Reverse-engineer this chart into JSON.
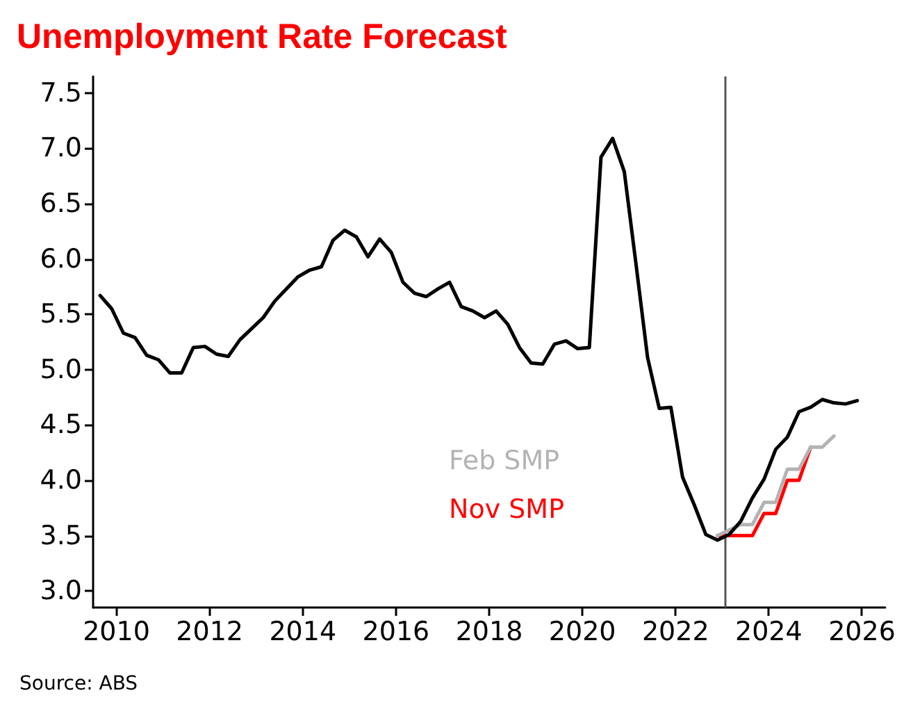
{
  "chart_data": {
    "type": "line",
    "title": "Unemployment Rate Forecast",
    "annotations": [
      "Source: ABS"
    ],
    "xlim": [
      2009.5,
      2026.5
    ],
    "xticks": [
      2010,
      2012,
      2014,
      2016,
      2018,
      2020,
      2022,
      2024,
      2026
    ],
    "ylim": [
      2.85,
      7.65
    ],
    "yticks": [
      {
        "value": 3,
        "label": "3.0"
      },
      {
        "value": 3.5,
        "label": "3.5"
      },
      {
        "value": 4,
        "label": "4.0"
      },
      {
        "value": 4.5,
        "label": "4.5"
      },
      {
        "value": 5,
        "label": "5.0"
      },
      {
        "value": 5.5,
        "label": "5.5"
      },
      {
        "value": 6,
        "label": "6.0"
      },
      {
        "value": 6.5,
        "label": "6.5"
      },
      {
        "value": 7,
        "label": "7.0"
      },
      {
        "value": 7.5,
        "label": "7.5"
      }
    ],
    "grid": false,
    "legend": false,
    "marker": "none",
    "line_style": "solid",
    "ref_lines": [
      {
        "axis": "x",
        "value": 2023.05,
        "label": null,
        "color": "#555555",
        "line_style": "solid"
      }
    ],
    "series": [
      {
        "color": "#000000",
        "x": [
          2009.65,
          2009.9,
          2010.15,
          2010.4,
          2010.65,
          2010.9,
          2011.15,
          2011.4,
          2011.65,
          2011.9,
          2012.15,
          2012.4,
          2012.65,
          2012.9,
          2013.15,
          2013.4,
          2013.65,
          2013.9,
          2014.15,
          2014.4,
          2014.65,
          2014.9,
          2015.15,
          2015.4,
          2015.65,
          2015.9,
          2016.15,
          2016.4,
          2016.65,
          2016.9,
          2017.15,
          2017.4,
          2017.65,
          2017.9,
          2018.15,
          2018.4,
          2018.65,
          2018.9,
          2019.15,
          2019.4,
          2019.65,
          2019.9,
          2020.15,
          2020.4,
          2020.65,
          2020.9,
          2021.15,
          2021.4,
          2021.65,
          2021.9,
          2022.15,
          2022.4,
          2022.65,
          2022.9,
          2023.15,
          2023.4,
          2023.65,
          2023.9,
          2024.15,
          2024.4,
          2024.65,
          2024.9,
          2025.15,
          2025.4,
          2025.65,
          2025.9
        ],
        "values": [
          5.67,
          5.55,
          5.33,
          5.29,
          5.13,
          5.09,
          4.97,
          4.97,
          5.2,
          5.21,
          5.14,
          5.12,
          5.27,
          5.37,
          5.47,
          5.62,
          5.73,
          5.84,
          5.9,
          5.93,
          6.17,
          6.26,
          6.2,
          6.02,
          6.18,
          6.06,
          5.79,
          5.69,
          5.66,
          5.73,
          5.79,
          5.57,
          5.53,
          5.47,
          5.53,
          5.41,
          5.2,
          5.06,
          5.05,
          5.23,
          5.26,
          5.19,
          5.2,
          6.92,
          7.09,
          6.79,
          5.96,
          5.11,
          4.65,
          4.66,
          4.03,
          3.78,
          3.51,
          3.46,
          3.51,
          3.63,
          3.84,
          4.01,
          4.28,
          4.39,
          4.62,
          4.66,
          4.73,
          4.7,
          4.69,
          4.72
        ]
      },
      {
        "name": "Feb SMP",
        "color": "#b3b3b3",
        "x": [
          2022.9,
          2023.4,
          2023.65,
          2023.9,
          2024.15,
          2024.4,
          2024.65,
          2024.9,
          2025.15,
          2025.4
        ],
        "values": [
          3.5,
          3.6,
          3.6,
          3.8,
          3.8,
          4.1,
          4.1,
          4.3,
          4.3,
          4.4
        ]
      },
      {
        "name": "Nov SMP",
        "color": "#ff0000",
        "x": [
          2022.9,
          2023.15,
          2023.4,
          2023.65,
          2023.9,
          2024.15,
          2024.4,
          2024.65,
          2024.9
        ],
        "values": [
          3.5,
          3.5,
          3.5,
          3.5,
          3.7,
          3.7,
          4.0,
          4.0,
          4.3
        ]
      }
    ]
  }
}
